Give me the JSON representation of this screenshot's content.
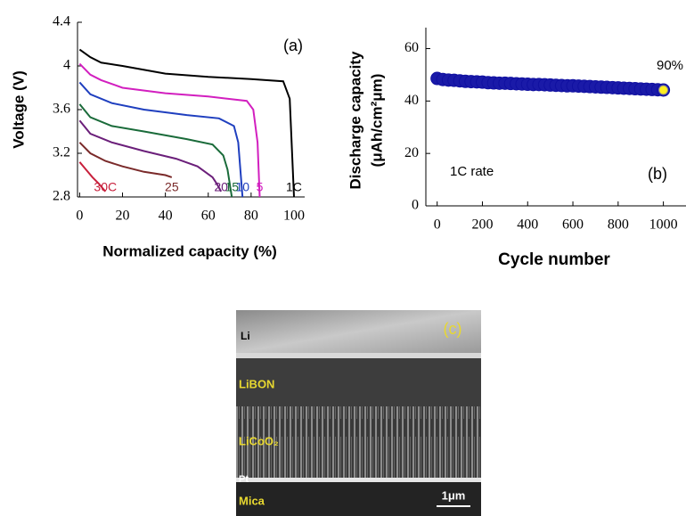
{
  "chart_data": [
    {
      "type": "line",
      "annotations": [
        "(a)"
      ],
      "x_label": "Normalized capacity (%)",
      "y_label": "Voltage (V)",
      "xlim": [
        -1,
        105
      ],
      "ylim": [
        2.8,
        4.4
      ],
      "xticks": [
        0,
        20,
        40,
        60,
        80,
        100
      ],
      "yticks": [
        2.8,
        3.2,
        3.6,
        4,
        4.4
      ],
      "series": [
        {
          "name": "1C",
          "color": "#000000",
          "x": [
            0,
            5,
            10,
            20,
            40,
            60,
            80,
            95,
            98,
            100
          ],
          "values": [
            4.15,
            4.08,
            4.03,
            4.0,
            3.93,
            3.9,
            3.88,
            3.86,
            3.7,
            2.8
          ]
        },
        {
          "name": "5",
          "color": "#d21fbf",
          "x": [
            0,
            5,
            10,
            20,
            40,
            60,
            78,
            81,
            83,
            84
          ],
          "values": [
            4.02,
            3.92,
            3.87,
            3.8,
            3.75,
            3.72,
            3.68,
            3.6,
            3.3,
            2.8
          ]
        },
        {
          "name": "10",
          "color": "#1f3fbf",
          "x": [
            0,
            5,
            15,
            30,
            50,
            65,
            72,
            74,
            76
          ],
          "values": [
            3.85,
            3.74,
            3.66,
            3.6,
            3.55,
            3.52,
            3.45,
            3.3,
            2.8
          ]
        },
        {
          "name": "15",
          "color": "#1a6b3a",
          "x": [
            0,
            5,
            15,
            30,
            50,
            62,
            67,
            69,
            71
          ],
          "values": [
            3.65,
            3.53,
            3.45,
            3.4,
            3.33,
            3.28,
            3.18,
            3.05,
            2.8
          ]
        },
        {
          "name": "20",
          "color": "#6b1f7a",
          "x": [
            0,
            5,
            15,
            30,
            45,
            55,
            62,
            64,
            66
          ],
          "values": [
            3.5,
            3.38,
            3.3,
            3.22,
            3.15,
            3.08,
            2.98,
            2.92,
            2.85
          ]
        },
        {
          "name": "25",
          "color": "#7a2a2a",
          "x": [
            0,
            5,
            12,
            20,
            30,
            40,
            43
          ],
          "values": [
            3.3,
            3.2,
            3.13,
            3.08,
            3.03,
            3.0,
            2.98
          ]
        },
        {
          "name": "30C",
          "color": "#c8203c",
          "x": [
            0,
            3,
            6,
            9,
            12
          ],
          "values": [
            3.12,
            3.05,
            2.98,
            2.92,
            2.85
          ]
        }
      ]
    },
    {
      "type": "scatter",
      "annotations": [
        "90%",
        "1C rate",
        "(b)"
      ],
      "x_label": "Cycle number",
      "y_label": [
        "Discharge capacity",
        "(μAh/cm²μm)"
      ],
      "xlim": [
        -50,
        1100
      ],
      "ylim": [
        0,
        68
      ],
      "xticks": [
        0,
        200,
        400,
        600,
        800,
        1000
      ],
      "yticks": [
        0,
        20,
        40,
        60
      ],
      "series": [
        {
          "color": "#1a1aa8",
          "x": [
            0,
            25,
            50,
            75,
            100,
            125,
            150,
            175,
            200,
            225,
            250,
            275,
            300,
            325,
            350,
            375,
            400,
            425,
            450,
            475,
            500,
            525,
            550,
            575,
            600,
            625,
            650,
            675,
            700,
            725,
            750,
            775,
            800,
            825,
            850,
            875,
            900,
            925,
            950,
            975,
            1000
          ],
          "values": [
            48.6,
            48.2,
            48.0,
            47.9,
            47.7,
            47.5,
            47.4,
            47.3,
            47.2,
            47.0,
            46.9,
            46.8,
            46.8,
            46.7,
            46.6,
            46.5,
            46.4,
            46.3,
            46.3,
            46.2,
            46.1,
            46.0,
            45.9,
            45.8,
            45.8,
            45.7,
            45.6,
            45.5,
            45.4,
            45.3,
            45.2,
            45.1,
            45.0,
            44.9,
            44.8,
            44.7,
            44.6,
            44.5,
            44.4,
            44.3,
            44.2
          ]
        },
        {
          "color": "#ffee22",
          "x": [
            1000
          ],
          "values": [
            44.2
          ]
        }
      ]
    }
  ],
  "micrograph": {
    "labels": [
      "Li",
      "LiBON",
      "LiCoO₂",
      "Pt",
      "Mica"
    ],
    "scale_bar": "1μm",
    "panel": "(c)"
  }
}
